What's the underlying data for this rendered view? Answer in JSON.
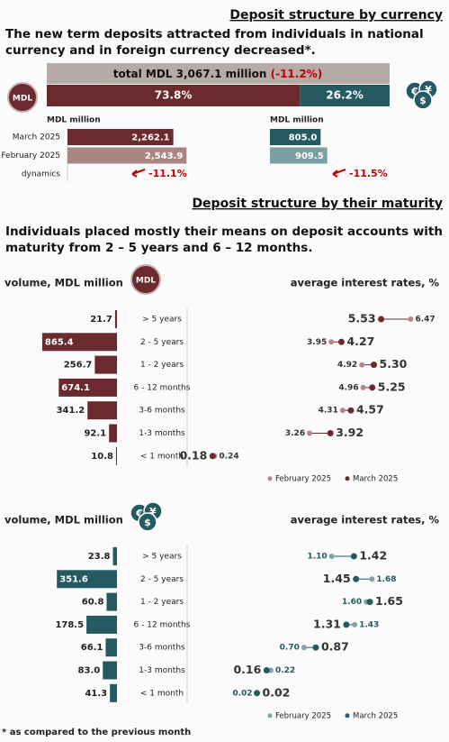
{
  "header": {
    "title": "Deposit structure by currency",
    "subtitle": "The new term deposits attracted from individuals in national currency and in foreign currency decreased*."
  },
  "total": {
    "text": "total MDL 3,067.1 million",
    "change": "(-11.2%)"
  },
  "shares": {
    "values": [
      73.8,
      26.2
    ],
    "value_labels": [
      "73.8%",
      "26.2%"
    ],
    "colors": [
      "#6b2a2e",
      "#255a63"
    ]
  },
  "badges": {
    "mdl": "MDL",
    "fx": [
      "€",
      "$",
      "¥"
    ]
  },
  "currency": {
    "rows": [
      "March 2025",
      "February 2025",
      "dynamics"
    ],
    "mdl": {
      "unit": "MDL million",
      "values": [
        2262.1,
        2543.9
      ],
      "value_labels": [
        "2,262.1",
        "2,543.9"
      ],
      "colors": [
        "#6b2a2e",
        "#a98583"
      ],
      "dynamics": "-11.1%"
    },
    "fx": {
      "unit": "MDL million",
      "values": [
        805.0,
        909.5
      ],
      "value_labels": [
        "805.0",
        "909.5"
      ],
      "colors": [
        "#255a63",
        "#7b9fa3"
      ],
      "dynamics": "-11.5%"
    }
  },
  "maturity": {
    "title": "Deposit structure by their maturity",
    "text": "Individuals placed mostly their means on deposit accounts with maturity from 2 – 5 years and 6 – 12 months.",
    "categories": [
      "> 5 years",
      "2 - 5 years",
      "1 - 2 years",
      "6 - 12 months",
      "3-6 months",
      "1-3 months",
      "< 1 month"
    ],
    "legend": [
      "February 2025",
      "March 2025"
    ],
    "mdl": {
      "volume_label": "volume, MDL million",
      "rates_label": "average interest rates, %",
      "color": "#6b2a2e",
      "light_color": "#b08a88",
      "volumes": [
        21.7,
        865.4,
        256.7,
        674.1,
        341.2,
        92.1,
        10.8
      ],
      "volume_labels": [
        "21.7",
        "865.4",
        "256.7",
        "674.1",
        "341.2",
        "92.1",
        "10.8"
      ],
      "february": {
        "values": [
          6.47,
          3.95,
          4.92,
          4.96,
          4.31,
          3.26,
          0.24
        ],
        "value_labels": [
          "6.47",
          "3.95",
          "4.92",
          "4.96",
          "4.31",
          "3.26",
          "0.24"
        ]
      },
      "march": {
        "values": [
          5.53,
          4.27,
          5.3,
          5.25,
          4.57,
          3.92,
          0.18
        ],
        "value_labels": [
          "5.53",
          "4.27",
          "5.30",
          "5.25",
          "4.57",
          "3.92",
          "0.18"
        ]
      }
    },
    "fx": {
      "volume_label": "volume, MDL million",
      "rates_label": "average interest rates, %",
      "color": "#255a63",
      "light_color": "#7fa3a7",
      "volumes": [
        23.8,
        351.6,
        60.8,
        178.5,
        66.1,
        83.0,
        41.3
      ],
      "volume_labels": [
        "23.8",
        "351.6",
        "60.8",
        "178.5",
        "66.1",
        "83.0",
        "41.3"
      ],
      "february": {
        "values": [
          1.1,
          1.68,
          1.6,
          1.43,
          0.7,
          0.22,
          0.02
        ],
        "value_labels": [
          "1.10",
          "1.68",
          "1.60",
          "1.43",
          "0.70",
          "0.22",
          "0.02"
        ]
      },
      "march": {
        "values": [
          1.42,
          1.45,
          1.65,
          1.31,
          0.87,
          0.16,
          0.02
        ],
        "value_labels": [
          "1.42",
          "1.45",
          "1.65",
          "1.31",
          "0.87",
          "0.16",
          "0.02"
        ]
      }
    }
  },
  "footnote": "* as compared to the previous month"
}
